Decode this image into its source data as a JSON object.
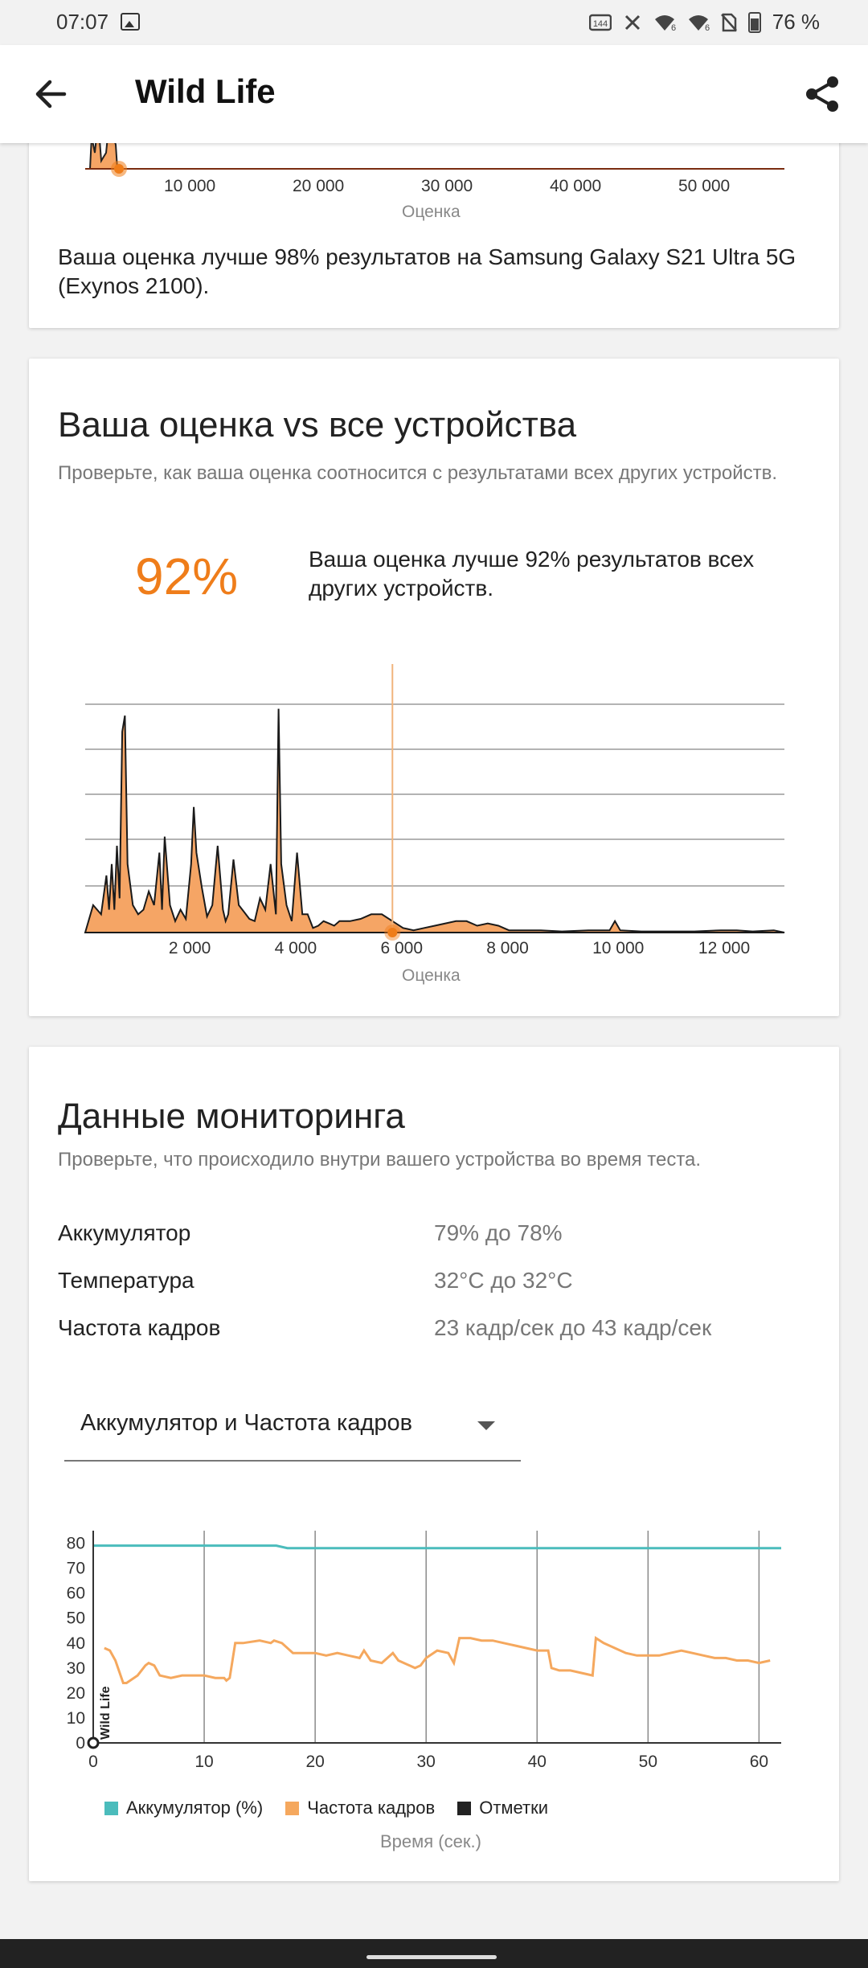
{
  "status": {
    "time": "07:07",
    "battery": "76 %",
    "icons": [
      "image-icon",
      "hd-icon",
      "mute-icon",
      "wifi-icon",
      "wifi-icon",
      "sim-icon",
      "battery-icon"
    ]
  },
  "app_bar": {
    "title": "Wild Life"
  },
  "card1": {
    "tick_labels": [
      "10 000",
      "20 000",
      "30 000",
      "40 000",
      "50 000"
    ],
    "axis_title": "Оценка",
    "text": "Ваша оценка лучше 98% результатов на Samsung Galaxy S21 Ultra 5G (Exynos 2100)."
  },
  "card2": {
    "heading": "Ваша оценка vs все устройства",
    "subtitle": "Проверьте, как ваша оценка соотносится с результатами всех других устройств.",
    "percent": "92%",
    "text": "Ваша оценка лучше 92% результатов всех других устройств.",
    "tick_labels": [
      "2 000",
      "4 000",
      "6 000",
      "8 000",
      "10 000",
      "12 000"
    ],
    "axis_title": "Оценка"
  },
  "card3": {
    "heading": "Данные мониторинга",
    "subtitle": "Проверьте, что происходило внутри вашего устройства во время теста.",
    "rows": [
      {
        "label": "Аккумулятор",
        "value": "79% до 78%"
      },
      {
        "label": "Температура",
        "value": "32°C до 32°C"
      },
      {
        "label": "Частота кадров",
        "value": "23 кадр/сек до 43 кадр/сек"
      }
    ],
    "dropdown_value": "Аккумулятор и Частота кадров",
    "marker_label": "Wild Life",
    "legend": [
      "Аккумулятор (%)",
      "Частота кадров",
      "Отметки"
    ],
    "x_axis_title": "Время (сек.)"
  },
  "colors": {
    "accent": "#ef7d1a",
    "battery": "#4bbcbc",
    "fps": "#f5a85e",
    "marks": "#222222",
    "histogram_fill": "#f5a565"
  },
  "chart_data": [
    {
      "type": "area",
      "title": "",
      "xlabel": "Оценка",
      "xticks": [
        10000,
        20000,
        30000,
        40000,
        50000
      ],
      "note": "partially scrolled histogram; marker near 6000"
    },
    {
      "type": "area",
      "title": "",
      "xlabel": "Оценка",
      "xticks": [
        2000,
        4000,
        6000,
        8000,
        10000,
        12000
      ],
      "xlim": [
        0,
        13200
      ],
      "your_score": 5800,
      "x": [
        0,
        150,
        300,
        400,
        450,
        500,
        550,
        600,
        650,
        700,
        750,
        800,
        900,
        1000,
        1100,
        1200,
        1300,
        1400,
        1450,
        1500,
        1600,
        1700,
        1800,
        1900,
        2000,
        2050,
        2100,
        2200,
        2300,
        2400,
        2500,
        2600,
        2650,
        2700,
        2800,
        2900,
        3000,
        3100,
        3200,
        3300,
        3400,
        3500,
        3600,
        3650,
        3700,
        3800,
        3900,
        4000,
        4100,
        4200,
        4300,
        4400,
        4500,
        4600,
        4700,
        4800,
        5000,
        5200,
        5400,
        5600,
        5800,
        6000,
        6200,
        6400,
        6600,
        6800,
        7000,
        7200,
        7400,
        7600,
        7800,
        8000,
        8200,
        8600,
        9000,
        9500,
        9900,
        10000,
        10100,
        10500,
        11000,
        11500,
        12000,
        12300,
        12600,
        13000,
        13200
      ],
      "y": [
        0.0,
        0.12,
        0.08,
        0.25,
        0.1,
        0.3,
        0.1,
        0.38,
        0.15,
        0.88,
        0.95,
        0.3,
        0.12,
        0.08,
        0.1,
        0.18,
        0.12,
        0.35,
        0.1,
        0.42,
        0.12,
        0.05,
        0.1,
        0.06,
        0.3,
        0.55,
        0.35,
        0.2,
        0.07,
        0.12,
        0.38,
        0.1,
        0.05,
        0.08,
        0.32,
        0.12,
        0.09,
        0.06,
        0.05,
        0.15,
        0.1,
        0.3,
        0.08,
        0.98,
        0.3,
        0.12,
        0.05,
        0.35,
        0.08,
        0.08,
        0.02,
        0.03,
        0.05,
        0.04,
        0.03,
        0.05,
        0.05,
        0.06,
        0.08,
        0.08,
        0.05,
        0.02,
        0.01,
        0.02,
        0.03,
        0.04,
        0.05,
        0.05,
        0.03,
        0.04,
        0.03,
        0.01,
        0.01,
        0.01,
        0.005,
        0.01,
        0.01,
        0.05,
        0.01,
        0.005,
        0.005,
        0.005,
        0.01,
        0.01,
        0.005,
        0.01,
        0.0
      ]
    },
    {
      "type": "line",
      "title": "",
      "xlabel": "Время (сек.)",
      "xlim": [
        0,
        62
      ],
      "ylim": [
        0,
        85
      ],
      "xticks": [
        0,
        10,
        20,
        30,
        40,
        50,
        60
      ],
      "yticks": [
        0,
        10,
        20,
        30,
        40,
        50,
        60,
        70,
        80
      ],
      "series": [
        {
          "name": "Аккумулятор (%)",
          "x": [
            0,
            16.5,
            17.5,
            62
          ],
          "values": [
            79,
            79,
            78,
            78
          ]
        },
        {
          "name": "Частота кадров",
          "x": [
            1,
            1.5,
            2,
            2.7,
            3,
            4,
            4.7,
            5,
            5.5,
            6,
            7,
            8,
            9,
            10,
            11,
            11.8,
            12,
            12.3,
            12.8,
            13.5,
            15,
            16,
            16.3,
            17,
            18,
            19,
            20,
            21,
            22,
            23,
            24,
            24.4,
            25,
            26,
            27,
            27.5,
            28,
            29,
            29.5,
            30,
            31,
            32,
            32.5,
            33,
            34,
            35,
            36,
            37,
            38,
            39,
            40,
            41,
            41.3,
            42,
            43,
            44,
            45,
            45.3,
            46,
            47,
            48,
            49,
            50,
            51,
            52,
            53,
            54,
            55,
            56,
            57,
            58,
            59,
            60,
            61
          ],
          "values": [
            38,
            37,
            33,
            24,
            24,
            27,
            31,
            32,
            31,
            27,
            26,
            27,
            27,
            27,
            26,
            26,
            25,
            26,
            40,
            40,
            41,
            40,
            41,
            40,
            36,
            36,
            36,
            35,
            36,
            35,
            34,
            37,
            33,
            32,
            36,
            33,
            32,
            30,
            31,
            34,
            37,
            36,
            32,
            42,
            42,
            41,
            41,
            40,
            39,
            38,
            37,
            37,
            30,
            29,
            29,
            28,
            27,
            42,
            40,
            38,
            36,
            35,
            35,
            35,
            36,
            37,
            36,
            35,
            34,
            34,
            33,
            33,
            32,
            33
          ]
        },
        {
          "name": "Отметки",
          "x": [
            0
          ],
          "values": [
            0
          ]
        }
      ]
    }
  ]
}
